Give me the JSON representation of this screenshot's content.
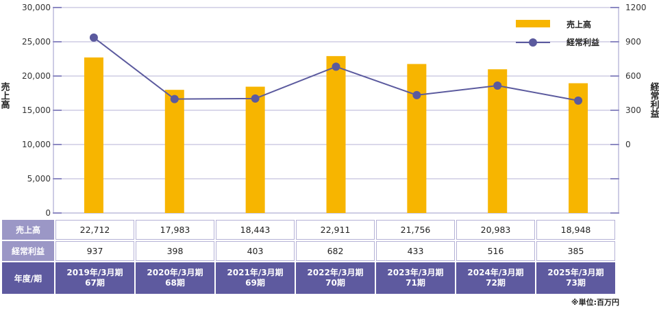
{
  "chart_data": {
    "type": "bar+line",
    "categories": [
      "2019年/3月期",
      "2020年/3月期",
      "2021年/3月期",
      "2022年/3月期",
      "2023年/3月期",
      "2024年/3月期",
      "2025年/3月期"
    ],
    "series": [
      {
        "name": "売上高",
        "type": "bar",
        "axis": "left",
        "values": [
          22712,
          17983,
          18443,
          22911,
          21756,
          20983,
          18948
        ]
      },
      {
        "name": "経常利益",
        "type": "line",
        "axis": "right",
        "values": [
          937,
          398,
          403,
          682,
          433,
          516,
          385
        ]
      }
    ],
    "ylabel_left": "売上高",
    "ylabel_right": "経常利益",
    "y_left_ticks": [
      "30,000",
      "25,000",
      "20,000",
      "15,000",
      "10,000",
      "5,000",
      "0"
    ],
    "y_right_ticks": [
      "1200",
      "900",
      "600",
      "300",
      "0"
    ],
    "ylim_left": [
      0,
      30000
    ],
    "ylim_right": [
      -600,
      1200
    ],
    "grid": true,
    "legend_position": "top-right",
    "colors": {
      "bar": "#f7b500",
      "line": "#5b5a9e",
      "grid": "#9b98c8"
    }
  },
  "table": {
    "row_labels": {
      "sales": "売上高",
      "profit": "経常利益",
      "year": "年度/期"
    },
    "sales": [
      "22,712",
      "17,983",
      "18,443",
      "22,911",
      "21,756",
      "20,983",
      "18,948"
    ],
    "profit": [
      "937",
      "398",
      "403",
      "682",
      "433",
      "516",
      "385"
    ],
    "years": [
      "2019年/3月期",
      "2020年/3月期",
      "2021年/3月期",
      "2022年/3月期",
      "2023年/3月期",
      "2024年/3月期",
      "2025年/3月期"
    ],
    "periods": [
      "67期",
      "68期",
      "69期",
      "70期",
      "71期",
      "72期",
      "73期"
    ]
  },
  "unit_note": "※単位:百万円"
}
